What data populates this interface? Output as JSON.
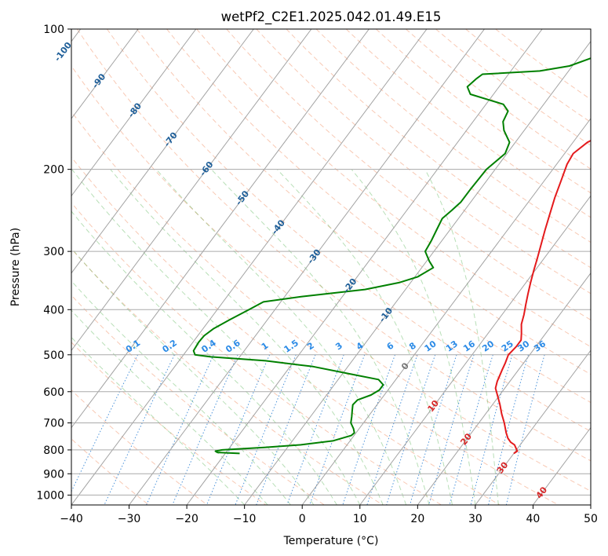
{
  "chart_data": {
    "type": "skew-t",
    "title": "wetPf2_C2E1.2025.042.01.49.E15",
    "xlabel": "Temperature (°C)",
    "ylabel": "Pressure (hPa)",
    "xlim": [
      -40,
      50
    ],
    "ylim": [
      1050,
      100
    ],
    "y_scale": "log",
    "grid": true,
    "x_ticks": [
      -40,
      -30,
      -20,
      -10,
      0,
      10,
      20,
      30,
      40,
      50
    ],
    "y_ticks": [
      100,
      200,
      300,
      400,
      500,
      600,
      700,
      800,
      900,
      1000
    ],
    "isotherm_labels": [
      -100,
      -90,
      -80,
      -70,
      -60,
      -50,
      -40,
      -30,
      -20,
      -10,
      0,
      10,
      20,
      30,
      40
    ],
    "mixing_ratio_labels": [
      "0.1",
      "0.2",
      "0.4",
      "0.6",
      "1",
      "1.5",
      "2",
      "3",
      "4",
      "6",
      "8",
      "10",
      "13",
      "16",
      "20",
      "25",
      "30",
      "36"
    ],
    "series": [
      {
        "color": "#e41a1c",
        "points": [
          [
            814,
            30.0
          ],
          [
            805,
            30.3
          ],
          [
            795,
            29.8
          ],
          [
            780,
            29.0
          ],
          [
            770,
            28.0
          ],
          [
            755,
            27.0
          ],
          [
            735,
            26.0
          ],
          [
            700,
            24.4
          ],
          [
            670,
            22.8
          ],
          [
            640,
            21.3
          ],
          [
            610,
            19.6
          ],
          [
            590,
            18.4
          ],
          [
            570,
            17.8
          ],
          [
            555,
            17.5
          ],
          [
            540,
            17.2
          ],
          [
            520,
            16.8
          ],
          [
            500,
            16.3
          ],
          [
            480,
            16.6
          ],
          [
            465,
            16.6
          ],
          [
            450,
            15.8
          ],
          [
            430,
            14.6
          ],
          [
            410,
            13.8
          ],
          [
            390,
            12.8
          ],
          [
            370,
            11.8
          ],
          [
            350,
            10.8
          ],
          [
            330,
            9.8
          ],
          [
            310,
            8.8
          ],
          [
            290,
            7.7
          ],
          [
            270,
            6.5
          ],
          [
            250,
            5.3
          ],
          [
            230,
            4.0
          ],
          [
            210,
            2.8
          ],
          [
            195,
            1.8
          ],
          [
            185,
            1.5
          ],
          [
            175,
            2.5
          ],
          [
            165,
            5.0
          ],
          [
            155,
            7.7
          ],
          [
            145,
            10.0
          ],
          [
            135,
            11.8
          ],
          [
            125,
            12.6
          ],
          [
            115,
            12.2
          ],
          [
            105,
            11.1
          ],
          [
            100,
            10.4
          ]
        ]
      },
      {
        "color": "#008000",
        "points": [
          [
            814,
            -17.5
          ],
          [
            810,
            -21.5
          ],
          [
            805,
            -22.0
          ],
          [
            800,
            -21.0
          ],
          [
            790,
            -14.0
          ],
          [
            780,
            -8.0
          ],
          [
            765,
            -3.0
          ],
          [
            745,
            -0.5
          ],
          [
            735,
            -0.3
          ],
          [
            720,
            -1.0
          ],
          [
            700,
            -2.2
          ],
          [
            680,
            -2.8
          ],
          [
            660,
            -3.5
          ],
          [
            640,
            -4.2
          ],
          [
            625,
            -4.0
          ],
          [
            610,
            -2.3
          ],
          [
            595,
            -1.5
          ],
          [
            580,
            -1.5
          ],
          [
            565,
            -3.0
          ],
          [
            550,
            -8.5
          ],
          [
            530,
            -16.0
          ],
          [
            515,
            -25.0
          ],
          [
            505,
            -35.0
          ],
          [
            500,
            -38.0
          ],
          [
            490,
            -38.8
          ],
          [
            470,
            -39.0
          ],
          [
            455,
            -38.9
          ],
          [
            440,
            -38.2
          ],
          [
            420,
            -36.5
          ],
          [
            400,
            -34.5
          ],
          [
            385,
            -33.0
          ],
          [
            375,
            -27.0
          ],
          [
            362,
            -17.0
          ],
          [
            350,
            -12.0
          ],
          [
            340,
            -9.5
          ],
          [
            325,
            -8.0
          ],
          [
            315,
            -9.5
          ],
          [
            300,
            -11.5
          ],
          [
            285,
            -11.8
          ],
          [
            270,
            -12.3
          ],
          [
            255,
            -12.8
          ],
          [
            245,
            -12.2
          ],
          [
            235,
            -11.7
          ],
          [
            220,
            -11.7
          ],
          [
            200,
            -11.5
          ],
          [
            185,
            -10.3
          ],
          [
            175,
            -11.0
          ],
          [
            165,
            -13.5
          ],
          [
            158,
            -14.8
          ],
          [
            150,
            -15.3
          ],
          [
            145,
            -17.0
          ],
          [
            138,
            -24.0
          ],
          [
            133,
            -25.5
          ],
          [
            128,
            -25.0
          ],
          [
            125,
            -24.5
          ],
          [
            123,
            -15.0
          ],
          [
            120,
            -10.5
          ],
          [
            115,
            -7.5
          ],
          [
            110,
            -6.0
          ],
          [
            105,
            -4.0
          ],
          [
            100,
            -0.5
          ]
        ]
      }
    ]
  }
}
